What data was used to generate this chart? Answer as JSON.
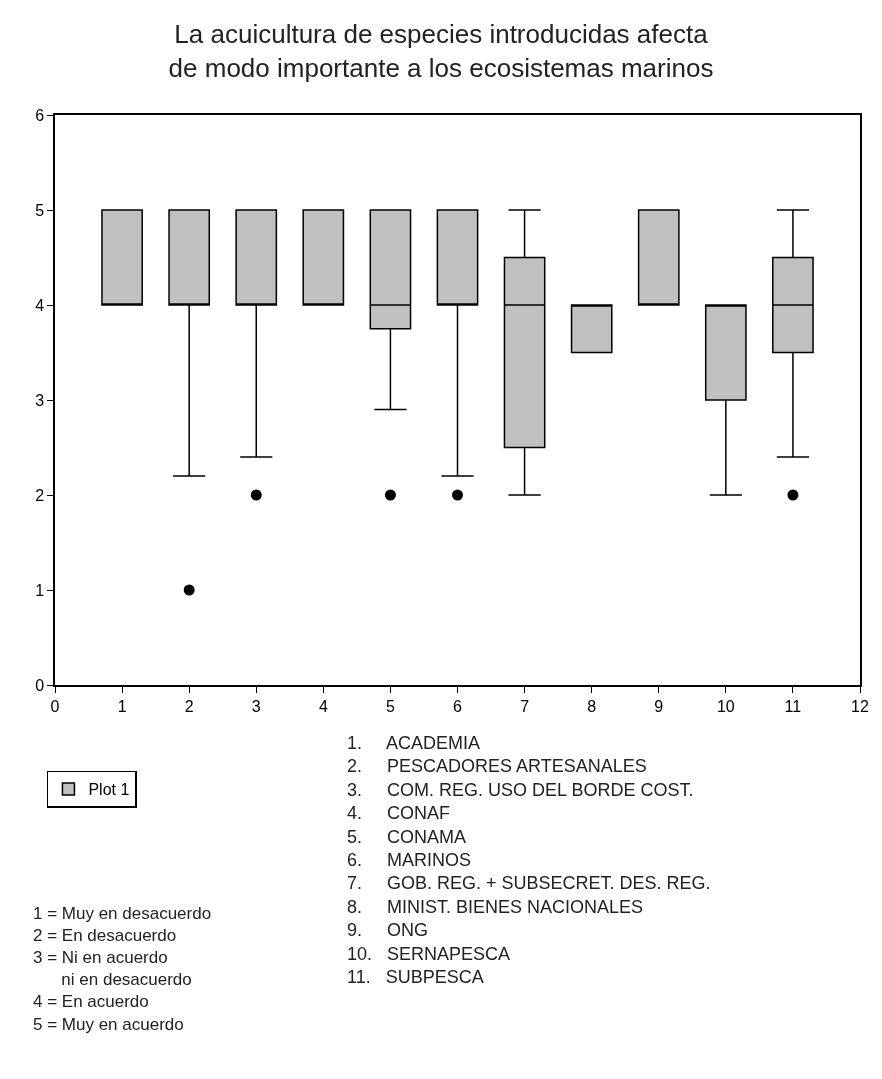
{
  "chart_data": {
    "type": "box",
    "title": "La acuicultura de especies introducidas afecta\nde modo importante a los ecosistemas marinos",
    "x": [
      1,
      2,
      3,
      4,
      5,
      6,
      7,
      8,
      9,
      10,
      11
    ],
    "series": [
      {
        "name": "Plot 1",
        "color": "#c0c0c0",
        "boxes": [
          {
            "low": 4,
            "q1": 4,
            "median": 4,
            "q3": 5,
            "high": 5
          },
          {
            "low": 2.2,
            "q1": 4,
            "median": 4,
            "q3": 5,
            "high": 5,
            "outliers": [
              1
            ]
          },
          {
            "low": 2.4,
            "q1": 4,
            "median": 4,
            "q3": 5,
            "high": 5,
            "outliers": [
              2
            ]
          },
          {
            "low": 4,
            "q1": 4,
            "median": 4,
            "q3": 5,
            "high": 5
          },
          {
            "low": 2.9,
            "q1": 3.75,
            "median": 4,
            "q3": 5,
            "high": 5,
            "outliers": [
              2
            ]
          },
          {
            "low": 2.2,
            "q1": 4,
            "median": 4,
            "q3": 5,
            "high": 5,
            "outliers": [
              2
            ]
          },
          {
            "low": 2,
            "q1": 2.5,
            "median": 4,
            "q3": 4.5,
            "high": 5
          },
          {
            "low": 3.5,
            "q1": 3.5,
            "median": 4,
            "q3": 4,
            "high": 4
          },
          {
            "low": 4,
            "q1": 4,
            "median": 4,
            "q3": 5,
            "high": 5
          },
          {
            "low": 2,
            "q1": 3,
            "median": 4,
            "q3": 4,
            "high": 4
          },
          {
            "low": 2.4,
            "q1": 3.5,
            "median": 4,
            "q3": 4.5,
            "high": 5,
            "outliers": [
              2
            ]
          }
        ]
      }
    ],
    "xlim": [
      0,
      12
    ],
    "xticks": [
      0,
      1,
      2,
      3,
      4,
      5,
      6,
      7,
      8,
      9,
      10,
      11,
      12
    ],
    "ylim": [
      0,
      6
    ],
    "yticks": [
      0,
      1,
      2,
      3,
      4,
      5,
      6
    ],
    "legend": "bottom left",
    "marker": "circle",
    "annotations": [
      "1 = Muy en desacuerdo\n2 = En desacuerdo\n3 = Ni en acuerdo\n      ni en desacuerdo\n4 = En acuerdo\n5 = Muy en acuerdo",
      "1.     ACADEMIA\n2.     PESCADORES ARTESANALES\n3.     COM. REG. USO DEL BORDE COST.\n4.     CONAF\n5.     CONAMA\n6.     MARINOS\n7.     GOB. REG. + SUBSECRET. DES. REG.\n8.     MINIST. BIENES NACIONALES\n9.     ONG\n10.   SERNAPESCA\n11.   SUBPESCA"
    ]
  }
}
